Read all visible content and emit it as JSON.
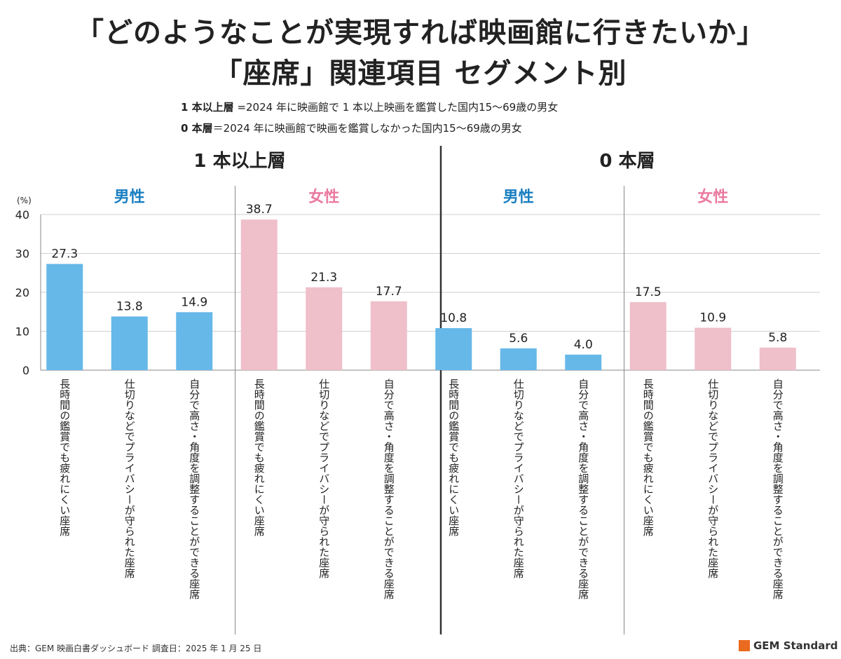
{
  "title_line1": "「どのようなことが実現すれば映画館に行きたいか」",
  "title_line2": "「座席」関連項目 セグメント別",
  "notes": [
    {
      "term": "1 本以上層",
      "desc": " =2024 年に映画館で 1 本以上映画を鑑賞した国内15～69歳の男女"
    },
    {
      "term": "0 本層",
      "desc": "＝2024 年に映画館で映画を鑑賞しなかった国内15～69歳の男女"
    }
  ],
  "footer": "出典：GEM 映画白書ダッシュボード  調査日：2025 年 1 月 25 日",
  "logo_text": "GEM Standard",
  "colors": {
    "male": "#66b8e8",
    "female": "#efbfca",
    "male_label": "#1a7fc1",
    "female_label": "#ea7ba0",
    "brand": "#ea6a1f"
  },
  "chart_data": {
    "type": "bar",
    "yunit": "(%)",
    "ylim": [
      0,
      40
    ],
    "yticks": [
      0,
      10,
      20,
      30,
      40
    ],
    "grid": true,
    "groups": [
      {
        "segment": "1 本以上層",
        "panels": [
          {
            "label": "男性",
            "series": "male",
            "values": [
              27.3,
              13.8,
              14.9
            ]
          },
          {
            "label": "女性",
            "series": "female",
            "values": [
              38.7,
              21.3,
              17.7
            ]
          }
        ]
      },
      {
        "segment": "0 本層",
        "panels": [
          {
            "label": "男性",
            "series": "male",
            "values": [
              10.8,
              5.6,
              4.0
            ]
          },
          {
            "label": "女性",
            "series": "female",
            "values": [
              17.5,
              10.9,
              5.8
            ]
          }
        ]
      }
    ],
    "categories": [
      "長時間の鑑賞でも疲れにくい座席",
      "仕切りなどでプライバシーが守られた座席",
      "自分で高さ・角度を調整することができる座席"
    ]
  }
}
